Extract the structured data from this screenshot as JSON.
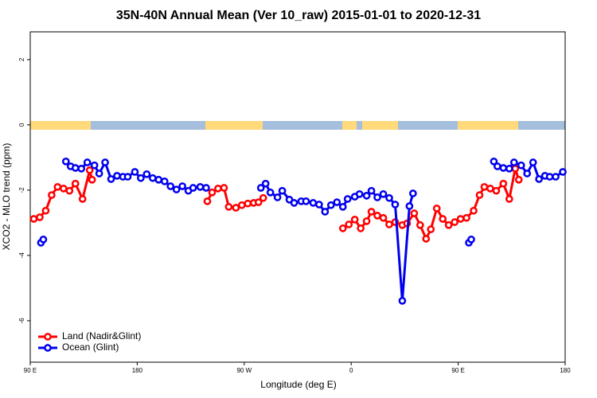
{
  "chart_data": {
    "type": "line",
    "title": "35N-40N Annual Mean (Ver 10_raw)   2015-01-01 to 2020-12-31",
    "x_label": "Longitude (deg E)",
    "y_label": "XCO2 - MLO trend (ppm)",
    "xlim": [
      90,
      540
    ],
    "xticks": [
      {
        "value": 90,
        "label": "90 E"
      },
      {
        "value": 180,
        "label": "180"
      },
      {
        "value": 270,
        "label": "90 W"
      },
      {
        "value": 360,
        "label": "0"
      },
      {
        "value": 450,
        "label": "90 E"
      },
      {
        "value": 540,
        "label": "180"
      }
    ],
    "ylim": [
      -7.27,
      2.85
    ],
    "yticks": [
      -6,
      -4,
      -2,
      0,
      2
    ],
    "legend": "bottom-left",
    "series": [
      {
        "name": "Land (Nadir&Glint)",
        "color": "#ff0000",
        "x": [
          93,
          98,
          103,
          108,
          113,
          118,
          123,
          128,
          134,
          140,
          142,
          null,
          239,
          243,
          248,
          253,
          257,
          263,
          268,
          273,
          278,
          282,
          286,
          null,
          353,
          358,
          363,
          368,
          373,
          377,
          382,
          387,
          392,
          397,
          403,
          407,
          413,
          418,
          423,
          427,
          432,
          437,
          442,
          447,
          452,
          457,
          463,
          468,
          472,
          477,
          482,
          488,
          493,
          498,
          501
        ],
        "values": [
          -2.88,
          -2.83,
          -2.63,
          -2.15,
          -1.9,
          -1.95,
          -2.02,
          -1.8,
          -2.27,
          -1.39,
          -1.68,
          null,
          -2.34,
          -2.07,
          -1.95,
          -1.93,
          -2.51,
          -2.54,
          -2.46,
          -2.41,
          -2.39,
          -2.37,
          -2.24,
          null,
          -3.17,
          -3.05,
          -2.9,
          -3.17,
          -2.95,
          -2.66,
          -2.78,
          -2.85,
          -3.05,
          -2.98,
          -3.07,
          -3.02,
          -2.71,
          -3.07,
          -3.49,
          -3.2,
          -2.56,
          -2.88,
          -3.07,
          -2.98,
          -2.88,
          -2.85,
          -2.63,
          -2.15,
          -1.9,
          -1.95,
          -2.02,
          -1.8,
          -2.27,
          -1.34,
          -1.68
        ]
      },
      {
        "name": "Ocean (Glint)",
        "color": "#0000ee",
        "x": [
          99,
          101,
          null,
          120,
          124,
          128,
          133,
          138,
          144,
          148,
          153,
          158,
          163,
          168,
          172,
          178,
          183,
          188,
          193,
          198,
          203,
          208,
          213,
          218,
          223,
          227,
          233,
          238,
          null,
          284,
          288,
          292,
          298,
          302,
          308,
          312,
          318,
          322,
          328,
          333,
          338,
          343,
          348,
          353,
          357,
          363,
          367,
          373,
          377,
          382,
          387,
          392,
          397,
          403,
          409,
          412,
          null,
          459,
          461,
          null,
          480,
          483,
          488,
          493,
          497,
          503,
          508,
          513,
          518,
          523,
          527,
          532,
          538
        ],
        "values": [
          -3.61,
          -3.51,
          null,
          -1.12,
          -1.27,
          -1.32,
          -1.34,
          -1.15,
          -1.24,
          -1.49,
          -1.15,
          -1.66,
          -1.56,
          -1.59,
          -1.59,
          -1.44,
          -1.63,
          -1.51,
          -1.63,
          -1.68,
          -1.73,
          -1.88,
          -1.98,
          -1.88,
          -2.02,
          -1.93,
          -1.9,
          -1.93,
          null,
          -1.93,
          -1.8,
          -2.07,
          -2.22,
          -2.02,
          -2.29,
          -2.39,
          -2.34,
          -2.34,
          -2.39,
          -2.44,
          -2.66,
          -2.46,
          -2.37,
          -2.51,
          -2.27,
          -2.2,
          -2.12,
          -2.17,
          -2.02,
          -2.22,
          -2.12,
          -2.24,
          -2.44,
          -5.39,
          -2.49,
          -2.1,
          null,
          -3.61,
          -3.51,
          null,
          -1.12,
          -1.27,
          -1.32,
          -1.34,
          -1.15,
          -1.24,
          -1.49,
          -1.15,
          -1.66,
          -1.56,
          -1.59,
          -1.59,
          -1.44
        ]
      }
    ]
  }
}
